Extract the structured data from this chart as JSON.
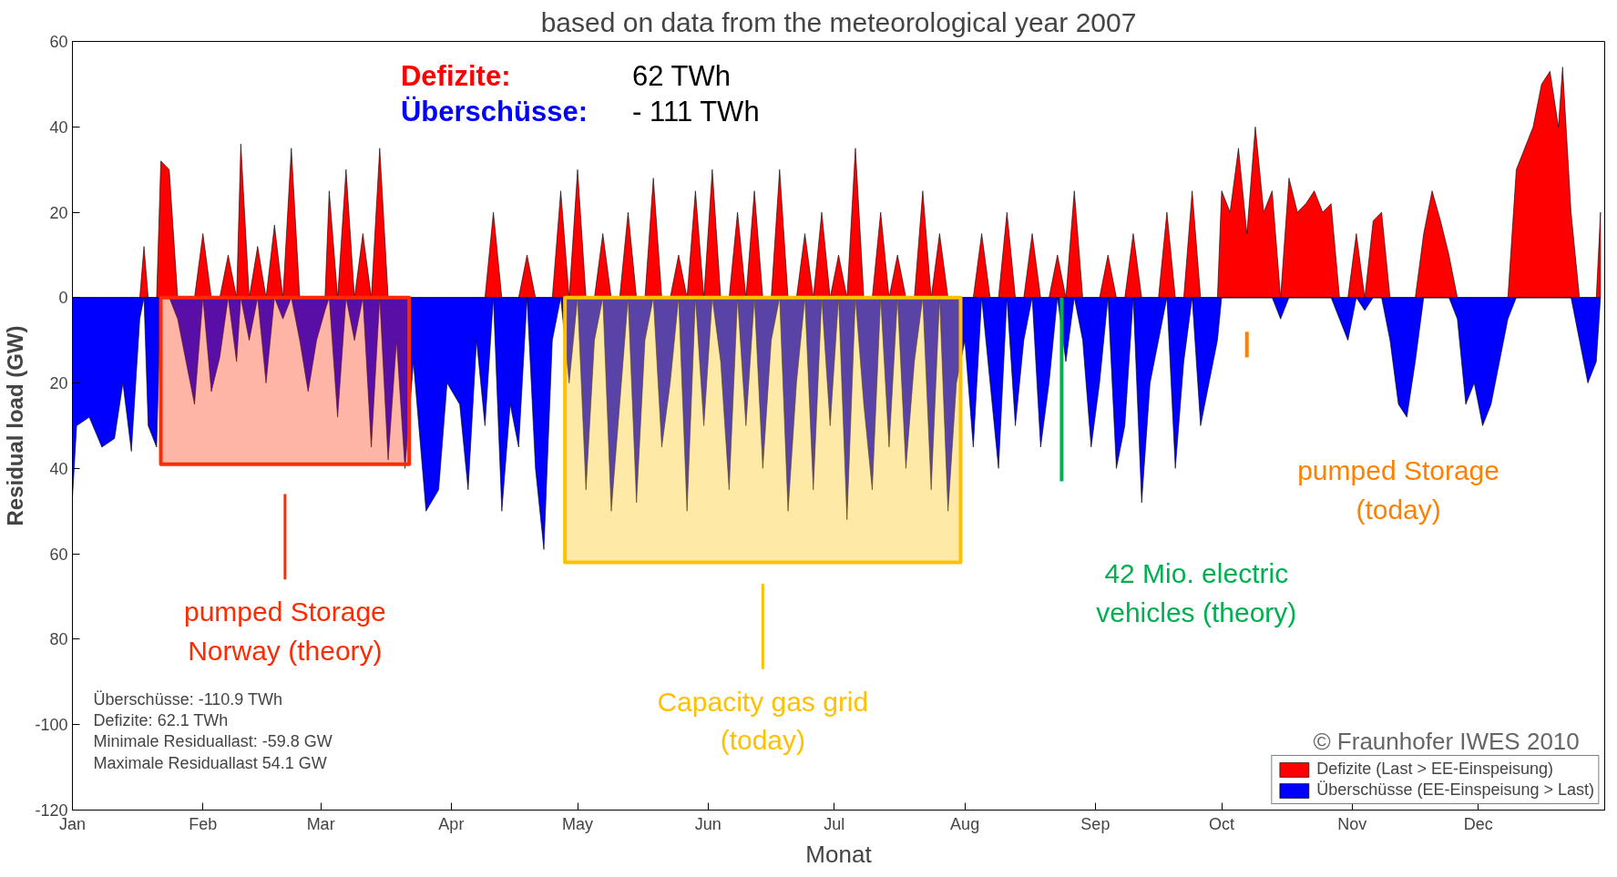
{
  "chart_data": {
    "type": "area",
    "title": "based on data from the meteorological year 2007",
    "xlabel": "Monat",
    "ylabel": "Residual load (GW)",
    "xlim": [
      "2007-01-01",
      "2007-12-31"
    ],
    "xticks": [
      {
        "value": "2007-01-01",
        "label": "Jan"
      },
      {
        "value": "2007-02-01",
        "label": "Feb"
      },
      {
        "value": "2007-03-01",
        "label": "Mar"
      },
      {
        "value": "2007-04-01",
        "label": "Apr"
      },
      {
        "value": "2007-05-01",
        "label": "May"
      },
      {
        "value": "2007-06-01",
        "label": "Jun"
      },
      {
        "value": "2007-07-01",
        "label": "Jul"
      },
      {
        "value": "2007-08-01",
        "label": "Aug"
      },
      {
        "value": "2007-09-01",
        "label": "Sep"
      },
      {
        "value": "2007-10-01",
        "label": "Oct"
      },
      {
        "value": "2007-11-01",
        "label": "Nov"
      },
      {
        "value": "2007-12-01",
        "label": "Dec"
      }
    ],
    "ylim": [
      -120,
      60
    ],
    "yticks": [
      60,
      40,
      20,
      0,
      {
        "value": -20,
        "label": "20"
      },
      {
        "value": -40,
        "label": "40"
      },
      {
        "value": -60,
        "label": "60"
      },
      {
        "value": -80,
        "label": "80"
      },
      -100,
      -120
    ],
    "grid": false,
    "legend": "bottom right",
    "x": [
      "2007-01-01",
      "2007-01-02",
      "2007-01-05",
      "2007-01-08",
      "2007-01-11",
      "2007-01-13",
      "2007-01-15",
      "2007-01-17",
      "2007-01-18",
      "2007-01-19",
      "2007-01-21",
      "2007-01-22",
      "2007-01-24",
      "2007-01-26",
      "2007-01-28",
      "2007-01-30",
      "2007-02-01",
      "2007-02-03",
      "2007-02-05",
      "2007-02-07",
      "2007-02-09",
      "2007-02-10",
      "2007-02-12",
      "2007-02-14",
      "2007-02-16",
      "2007-02-18",
      "2007-02-20",
      "2007-02-22",
      "2007-02-24",
      "2007-02-26",
      "2007-02-28",
      "2007-03-02",
      "2007-03-03",
      "2007-03-05",
      "2007-03-07",
      "2007-03-09",
      "2007-03-11",
      "2007-03-13",
      "2007-03-15",
      "2007-03-17",
      "2007-03-19",
      "2007-03-21",
      "2007-03-23",
      "2007-03-26",
      "2007-03-29",
      "2007-03-31",
      "2007-04-03",
      "2007-04-05",
      "2007-04-07",
      "2007-04-09",
      "2007-04-11",
      "2007-04-13",
      "2007-04-15",
      "2007-04-17",
      "2007-04-19",
      "2007-04-21",
      "2007-04-23",
      "2007-04-25",
      "2007-04-27",
      "2007-04-29",
      "2007-05-01",
      "2007-05-03",
      "2007-05-05",
      "2007-05-07",
      "2007-05-09",
      "2007-05-11",
      "2007-05-13",
      "2007-05-15",
      "2007-05-17",
      "2007-05-19",
      "2007-05-21",
      "2007-05-23",
      "2007-05-25",
      "2007-05-27",
      "2007-05-29",
      "2007-05-31",
      "2007-06-02",
      "2007-06-04",
      "2007-06-06",
      "2007-06-08",
      "2007-06-10",
      "2007-06-12",
      "2007-06-14",
      "2007-06-16",
      "2007-06-18",
      "2007-06-20",
      "2007-06-22",
      "2007-06-24",
      "2007-06-26",
      "2007-06-28",
      "2007-06-30",
      "2007-07-02",
      "2007-07-04",
      "2007-07-06",
      "2007-07-08",
      "2007-07-10",
      "2007-07-12",
      "2007-07-14",
      "2007-07-16",
      "2007-07-18",
      "2007-07-20",
      "2007-07-22",
      "2007-07-24",
      "2007-07-26",
      "2007-07-28",
      "2007-07-30",
      "2007-08-01",
      "2007-08-03",
      "2007-08-05",
      "2007-08-07",
      "2007-08-09",
      "2007-08-11",
      "2007-08-13",
      "2007-08-15",
      "2007-08-17",
      "2007-08-19",
      "2007-08-21",
      "2007-08-23",
      "2007-08-25",
      "2007-08-27",
      "2007-08-29",
      "2007-08-31",
      "2007-09-02",
      "2007-09-04",
      "2007-09-06",
      "2007-09-08",
      "2007-09-10",
      "2007-09-12",
      "2007-09-14",
      "2007-09-16",
      "2007-09-18",
      "2007-09-20",
      "2007-09-22",
      "2007-09-24",
      "2007-09-26",
      "2007-09-28",
      "2007-09-30",
      "2007-10-01",
      "2007-10-03",
      "2007-10-05",
      "2007-10-07",
      "2007-10-09",
      "2007-10-11",
      "2007-10-13",
      "2007-10-15",
      "2007-10-17",
      "2007-10-19",
      "2007-10-21",
      "2007-10-23",
      "2007-10-25",
      "2007-10-27",
      "2007-10-29",
      "2007-10-31",
      "2007-11-02",
      "2007-11-04",
      "2007-11-06",
      "2007-11-08",
      "2007-11-10",
      "2007-11-12",
      "2007-11-14",
      "2007-11-16",
      "2007-11-18",
      "2007-11-20",
      "2007-11-22",
      "2007-11-24",
      "2007-11-26",
      "2007-11-28",
      "2007-11-30",
      "2007-12-02",
      "2007-12-04",
      "2007-12-06",
      "2007-12-08",
      "2007-12-10",
      "2007-12-12",
      "2007-12-14",
      "2007-12-16",
      "2007-12-18",
      "2007-12-20",
      "2007-12-21",
      "2007-12-23",
      "2007-12-25",
      "2007-12-27",
      "2007-12-29",
      "2007-12-30"
    ],
    "series": [
      {
        "name": "Defizite (Last > EE-Einspeisung)",
        "color": "#ff0000",
        "values": [
          0,
          0,
          0,
          0,
          0,
          0,
          0,
          0,
          12,
          0,
          0,
          32,
          30,
          0,
          0,
          0,
          15,
          0,
          0,
          10,
          0,
          36,
          0,
          12,
          0,
          17,
          0,
          35,
          0,
          0,
          0,
          0,
          25,
          0,
          30,
          0,
          15,
          0,
          35,
          0,
          0,
          0,
          0,
          0,
          0,
          0,
          0,
          0,
          0,
          0,
          20,
          0,
          0,
          0,
          10,
          0,
          0,
          0,
          25,
          0,
          30,
          0,
          0,
          15,
          0,
          0,
          20,
          0,
          0,
          28,
          0,
          0,
          10,
          0,
          25,
          0,
          30,
          0,
          0,
          20,
          0,
          25,
          0,
          0,
          30,
          0,
          0,
          15,
          0,
          20,
          0,
          10,
          0,
          35,
          0,
          0,
          20,
          0,
          10,
          0,
          0,
          25,
          0,
          15,
          0,
          0,
          0,
          0,
          15,
          0,
          0,
          20,
          0,
          0,
          15,
          0,
          0,
          10,
          0,
          25,
          0,
          0,
          0,
          10,
          0,
          0,
          15,
          0,
          0,
          0,
          20,
          0,
          0,
          25,
          0,
          0,
          0,
          25,
          20,
          35,
          15,
          40,
          20,
          25,
          0,
          28,
          20,
          22,
          25,
          20,
          22,
          0,
          0,
          15,
          0,
          18,
          20,
          0,
          0,
          0,
          0,
          15,
          25,
          18,
          10,
          0,
          0,
          0,
          0,
          0,
          0,
          0,
          30,
          35,
          40,
          50,
          53,
          40,
          54,
          20,
          0,
          0,
          0,
          20
        ]
      },
      {
        "name": "Überschüsse (EE-Einspeisung > Last)",
        "color": "#0000ff",
        "values": [
          -47,
          -30,
          -28,
          -35,
          -33,
          -20,
          -36,
          -5,
          0,
          -30,
          -35,
          0,
          0,
          -5,
          -15,
          -25,
          0,
          -22,
          -14,
          0,
          -15,
          0,
          -10,
          0,
          -20,
          0,
          -5,
          0,
          -10,
          -22,
          -10,
          -3,
          0,
          -28,
          0,
          -10,
          0,
          -35,
          0,
          -38,
          -10,
          -40,
          -15,
          -50,
          -45,
          -20,
          -25,
          -45,
          -10,
          -30,
          0,
          -50,
          -25,
          -35,
          0,
          -40,
          -59,
          -10,
          0,
          -20,
          0,
          -45,
          -10,
          0,
          -50,
          -25,
          0,
          -48,
          -10,
          0,
          -35,
          -20,
          0,
          -50,
          0,
          -30,
          0,
          -15,
          -45,
          0,
          -30,
          0,
          -40,
          -10,
          0,
          -50,
          -20,
          0,
          -45,
          0,
          -30,
          0,
          -52,
          0,
          -25,
          -45,
          0,
          -35,
          0,
          -40,
          -15,
          0,
          -45,
          0,
          -50,
          -20,
          -10,
          -35,
          0,
          -20,
          -40,
          0,
          -30,
          -10,
          0,
          -35,
          -20,
          0,
          -15,
          0,
          -10,
          -35,
          -20,
          0,
          -40,
          -30,
          0,
          -48,
          -20,
          -10,
          0,
          -40,
          -15,
          0,
          -30,
          -20,
          -10,
          0,
          0,
          0,
          0,
          0,
          0,
          0,
          -5,
          0,
          0,
          0,
          0,
          0,
          0,
          -5,
          -10,
          0,
          -3,
          0,
          0,
          -10,
          -25,
          -28,
          -15,
          0,
          0,
          0,
          0,
          -5,
          -25,
          -20,
          -30,
          -25,
          -15,
          -5,
          0,
          0,
          0,
          0,
          0,
          0,
          0,
          0,
          -10,
          -20,
          -15,
          0
        ]
      },
      {
        "name": "pumped Storage\nNorway (theory)",
        "color": "#ff2a00",
        "x": [
          "2007-01-22",
          "2007-03-22"
        ],
        "values": [
          -39,
          -39
        ]
      },
      {
        "name": "Capacity gas grid\n(today)",
        "color": "#ffc000",
        "x": [
          "2007-04-28",
          "2007-07-31"
        ],
        "values": [
          -62,
          -62
        ]
      },
      {
        "name": "42 Mio. electric\nvehicles (theory)",
        "color": "#00b050",
        "type": "line",
        "x": [
          "2007-08-24",
          "2007-08-24"
        ],
        "values": [
          0,
          -43
        ]
      },
      {
        "name": "pumped Storage\n(today)",
        "color": "#ff8000",
        "type": "line",
        "x": [
          "2007-10-07",
          "2007-10-07"
        ],
        "values": [
          -8,
          -14
        ]
      }
    ],
    "annotations": [
      "Defizite: 62 TWh",
      "Überschüsse: - 111 TWh",
      "Überschüsse: -110.9 TWh",
      "Defizite: 62.1 TWh",
      "Minimale Residuallast: -59.8 GW",
      "Maximale Residuallast 54.1 GW",
      "© Fraunhofer IWES 2010"
    ]
  }
}
